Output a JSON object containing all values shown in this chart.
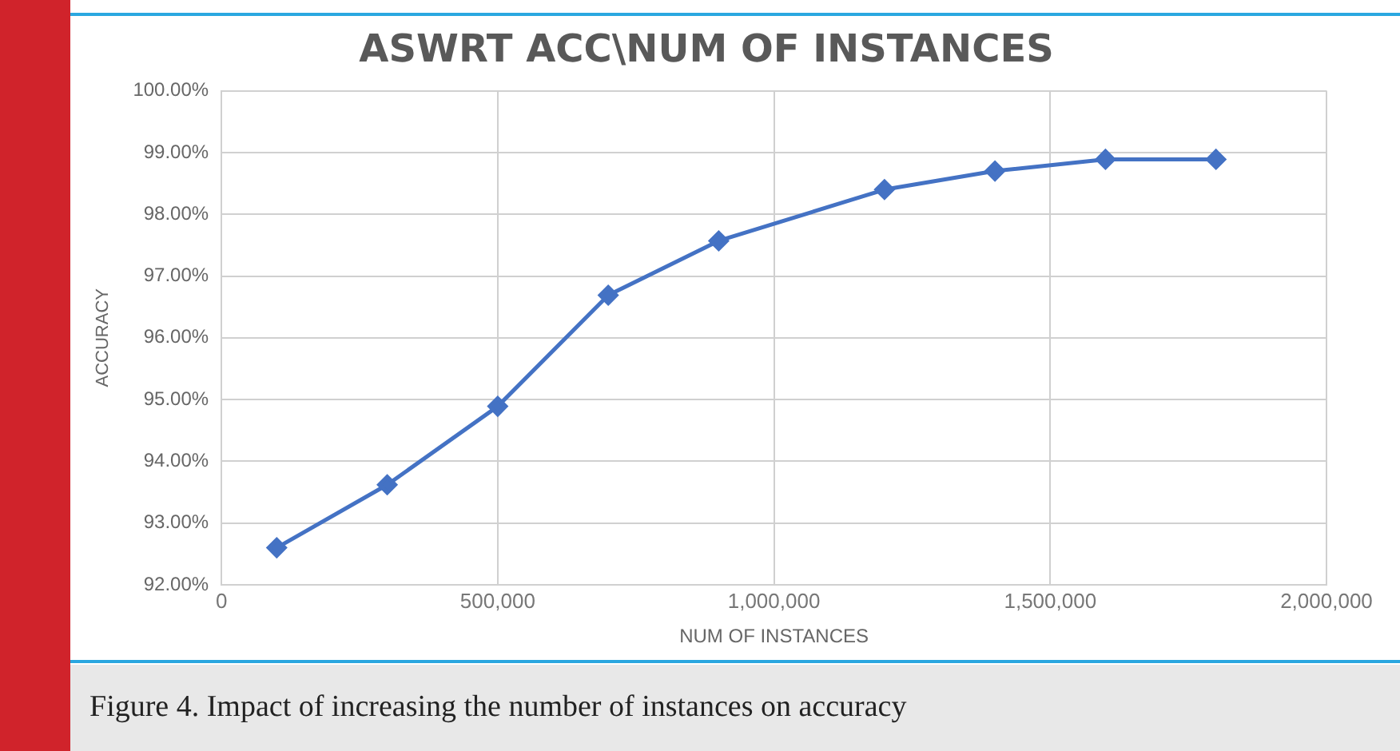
{
  "chart_data": {
    "type": "line",
    "title": "ASWRT ACC\\NUM OF INSTANCES",
    "xlabel": "NUM OF INSTANCES",
    "ylabel": "ACCURACY",
    "x": [
      100000,
      300000,
      500000,
      700000,
      900000,
      1200000,
      1400000,
      1600000,
      1800000
    ],
    "series": [
      {
        "color": "#4472c4",
        "values": [
          92.6,
          93.62,
          94.89,
          96.69,
          97.57,
          98.4,
          98.7,
          98.89,
          98.89
        ]
      }
    ],
    "xlim": [
      0,
      2000000
    ],
    "xticks": [
      {
        "value": 0,
        "label": "0"
      },
      {
        "value": 500000,
        "label": "500,000"
      },
      {
        "value": 1000000,
        "label": "1,000,000"
      },
      {
        "value": 1500000,
        "label": "1,500,000"
      },
      {
        "value": 2000000,
        "label": "2,000,000"
      }
    ],
    "ylim": [
      92,
      100
    ],
    "yticks": [
      {
        "value": 92,
        "label": "92.00%"
      },
      {
        "value": 93,
        "label": "93.00%"
      },
      {
        "value": 94,
        "label": "94.00%"
      },
      {
        "value": 95,
        "label": "95.00%"
      },
      {
        "value": 96,
        "label": "96.00%"
      },
      {
        "value": 97,
        "label": "97.00%"
      },
      {
        "value": 98,
        "label": "98.00%"
      },
      {
        "value": 99,
        "label": "99.00%"
      },
      {
        "value": 100,
        "label": "100.00%"
      }
    ],
    "grid": true,
    "legend": false,
    "marker": "diamond",
    "line_style": "solid",
    "annotations": [
      "Figure 4. Impact of increasing the number of instances on accuracy"
    ]
  }
}
